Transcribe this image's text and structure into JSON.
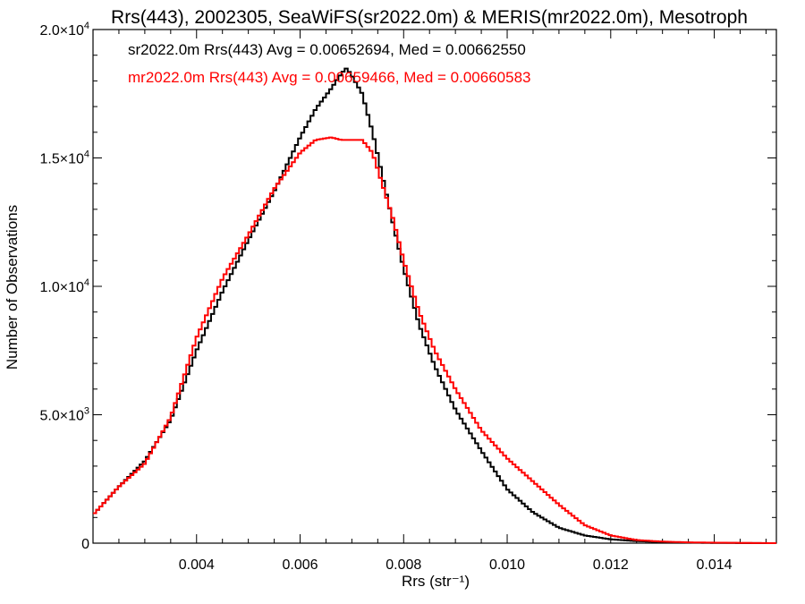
{
  "chart_data": {
    "type": "line",
    "title": "Rrs(443), 2002305, SeaWiFS(sr2022.0m) & MERIS(mr2022.0m), Mesotroph",
    "xlabel": "Rrs (str⁻¹)",
    "ylabel": "Number of Observations",
    "xlim": [
      0.002,
      0.0152
    ],
    "ylim": [
      0,
      20000
    ],
    "grid": false,
    "x_ticks": [
      {
        "value": 0.004,
        "label": "0.004"
      },
      {
        "value": 0.006,
        "label": "0.006"
      },
      {
        "value": 0.008,
        "label": "0.008"
      },
      {
        "value": 0.01,
        "label": "0.010"
      },
      {
        "value": 0.012,
        "label": "0.012"
      },
      {
        "value": 0.014,
        "label": "0.014"
      }
    ],
    "y_ticks": [
      {
        "value": 0,
        "mant": "0",
        "exp": ""
      },
      {
        "value": 5000,
        "mant": "5.0×10",
        "exp": "3"
      },
      {
        "value": 10000,
        "mant": "1.0×10",
        "exp": "4"
      },
      {
        "value": 15000,
        "mant": "1.5×10",
        "exp": "4"
      },
      {
        "value": 20000,
        "mant": "2.0×10",
        "exp": "4"
      }
    ],
    "legend_placement": "top-left",
    "series": [
      {
        "name": "sr2022.0m Rrs(443) Avg = 0.00652694, Med = 0.00662550",
        "color": "#000000",
        "x": [
          0.002,
          0.0025,
          0.003,
          0.0035,
          0.004,
          0.0045,
          0.005,
          0.0055,
          0.006,
          0.0063,
          0.0066,
          0.0068,
          0.0069,
          0.007,
          0.0072,
          0.0074,
          0.0076,
          0.0078,
          0.008,
          0.0083,
          0.0086,
          0.009,
          0.0095,
          0.01,
          0.0105,
          0.011,
          0.0115,
          0.012,
          0.0125,
          0.013,
          0.0135,
          0.014,
          0.0152
        ],
        "y": [
          1100,
          2200,
          3200,
          4800,
          7500,
          9800,
          11800,
          13700,
          15800,
          16900,
          17700,
          18300,
          18500,
          18200,
          17500,
          16000,
          14200,
          12400,
          10700,
          8500,
          6900,
          5200,
          3600,
          2100,
          1200,
          600,
          300,
          150,
          80,
          40,
          20,
          10,
          0
        ]
      },
      {
        "name": "mr2022.0m Rrs(443) Avg = 0.00659466, Med = 0.00660583",
        "color": "#ff0000",
        "x": [
          0.002,
          0.0025,
          0.003,
          0.0035,
          0.004,
          0.0045,
          0.005,
          0.0055,
          0.006,
          0.0063,
          0.0066,
          0.0068,
          0.007,
          0.0072,
          0.0074,
          0.0076,
          0.0078,
          0.008,
          0.0083,
          0.0086,
          0.009,
          0.0095,
          0.01,
          0.0105,
          0.011,
          0.0115,
          0.012,
          0.0125,
          0.013,
          0.0135,
          0.014,
          0.0145,
          0.0152
        ],
        "y": [
          1100,
          2200,
          3100,
          4900,
          8000,
          10300,
          12000,
          13800,
          15200,
          15700,
          15800,
          15700,
          15700,
          15700,
          15200,
          13900,
          12600,
          11000,
          9000,
          7500,
          6000,
          4400,
          3300,
          2400,
          1500,
          700,
          300,
          120,
          60,
          30,
          20,
          10,
          0
        ]
      }
    ]
  }
}
